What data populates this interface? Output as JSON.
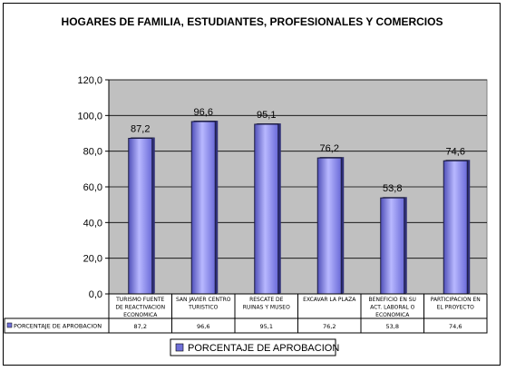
{
  "chart_data": {
    "type": "bar",
    "title": "HOGARES DE FAMILIA, ESTUDIANTES, PROFESIONALES Y COMERCIOS",
    "categories": [
      [
        "TURISMO FUENTE",
        "DE REACTIVACION",
        "ECONOMICA"
      ],
      [
        "SAN JAVIER CENTRO",
        "TURISTICO"
      ],
      [
        "RESCATE DE",
        "RUINAS Y MUSEO"
      ],
      [
        "EXCAVAR LA PLAZA"
      ],
      [
        "BENEFICIO EN SU",
        "ACT. LABORAL O",
        "ECONOMICA"
      ],
      [
        "PARTICIPACION EN",
        "EL PROYECTO"
      ]
    ],
    "series": [
      {
        "name": "PORCENTAJE DE APROBACION",
        "values": [
          87.2,
          96.6,
          95.1,
          76.2,
          53.8,
          74.6
        ],
        "labels": [
          "87,2",
          "96,6",
          "95,1",
          "76,2",
          "53,8",
          "74,6"
        ],
        "table_labels": [
          "87,2",
          "96,6",
          "95,1",
          "76,2",
          "53,8",
          "74,6"
        ],
        "table_series_label": "PORCENTAJE DE APROBACION"
      }
    ],
    "ylim": [
      0,
      120
    ],
    "yticks": [
      "0,0",
      "20,0",
      "40,0",
      "60,0",
      "80,0",
      "100,0",
      "120,0"
    ],
    "ytick_values": [
      0,
      20,
      40,
      60,
      80,
      100,
      120
    ],
    "grid": true,
    "legend": "bottom",
    "colors": {
      "plot_bg": "#c0c0c0",
      "bar_light": "#b0b0f8",
      "bar_mid": "#7070d8",
      "bar_dark": "#303078",
      "bar_top": "#202040"
    }
  }
}
